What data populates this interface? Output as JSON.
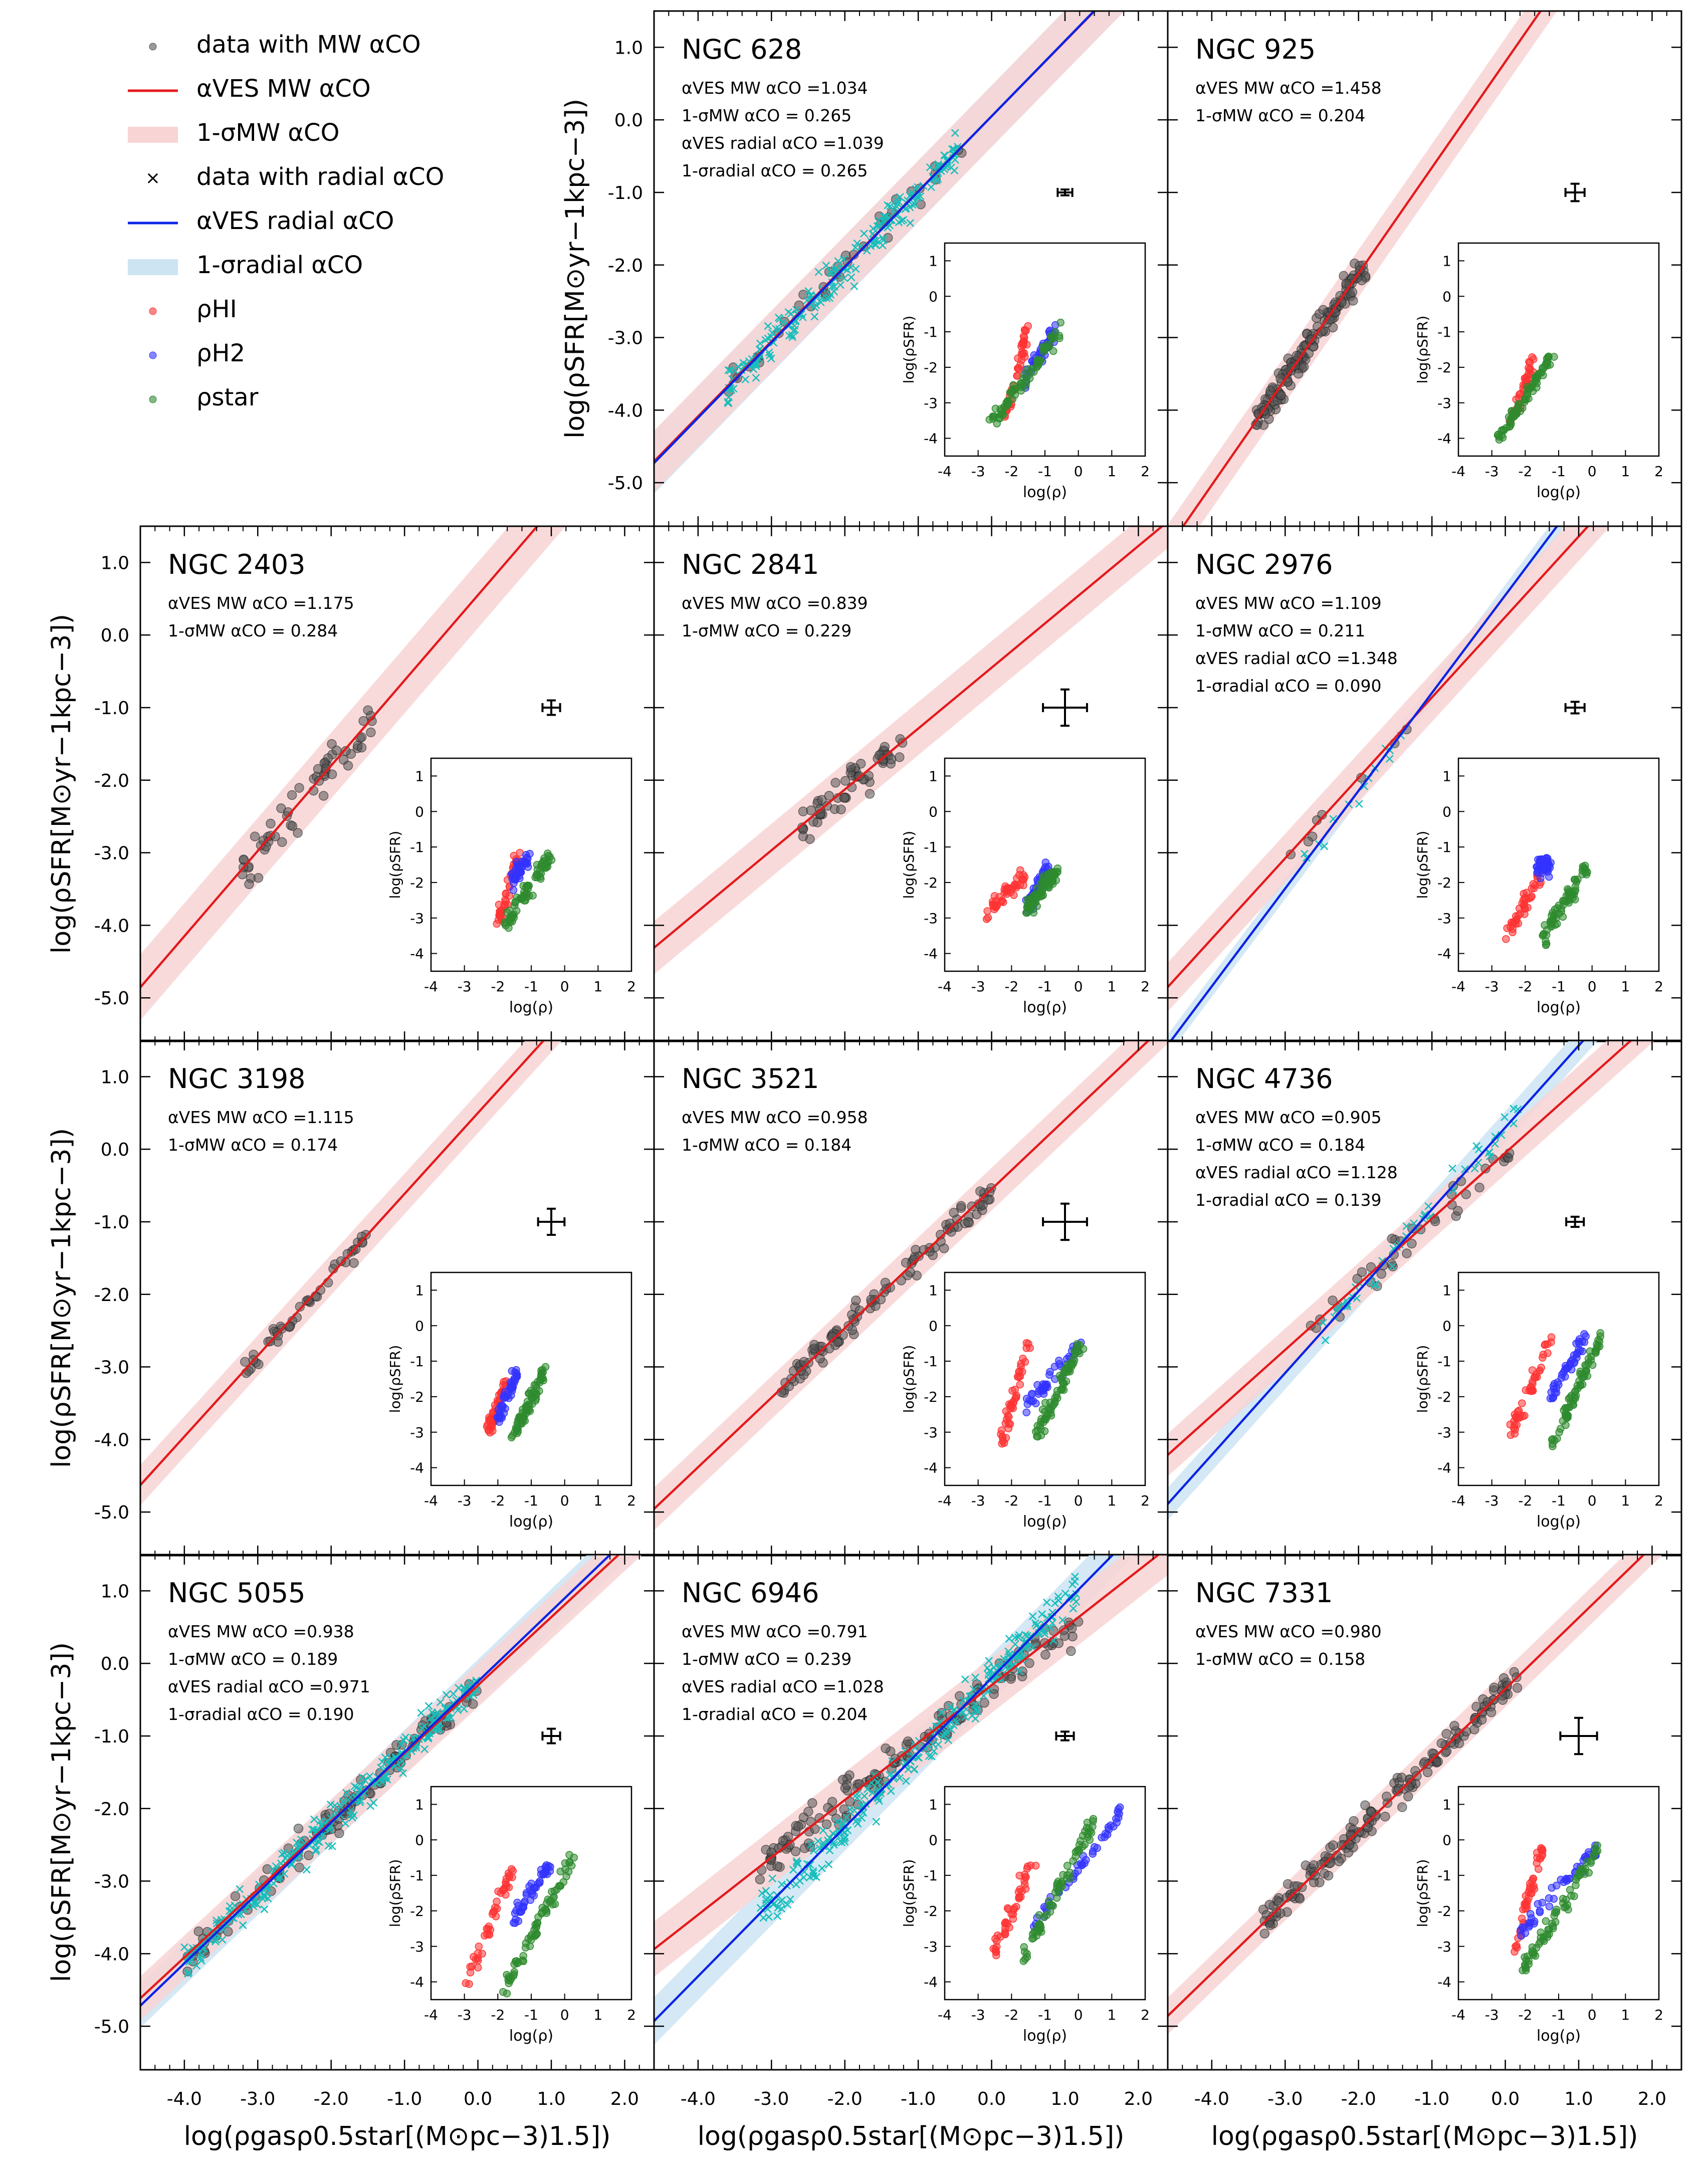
{
  "figure": {
    "xlabel": "log(ρgasρ0.5star[(M⊙pc−3)1.5])",
    "ylabel": "log(ρSFR[M⊙yr−1kpc−3])",
    "inset_xlabel": "log(ρ)",
    "inset_ylabel": "log(ρSFR)"
  },
  "legend": {
    "items": [
      {
        "kind": "dot",
        "color": "#555555",
        "label": "data with MW αCO"
      },
      {
        "kind": "line",
        "color": "#e41a1c",
        "label": "αVES MW αCO"
      },
      {
        "kind": "band",
        "color": "#f8d4d4",
        "label": "1-σMW αCO"
      },
      {
        "kind": "cross",
        "color": "#17bebb",
        "label": "data with radial αCO"
      },
      {
        "kind": "line",
        "color": "#0b24e6",
        "label": "αVES radial αCO"
      },
      {
        "kind": "band",
        "color": "#cde4f3",
        "label": "1-σradial αCO"
      },
      {
        "kind": "dot",
        "color": "#ff3333",
        "label": "ρHI"
      },
      {
        "kind": "dot",
        "color": "#3333ff",
        "label": "ρH2"
      },
      {
        "kind": "dot",
        "color": "#2e8b2e",
        "label": "ρstar"
      }
    ]
  },
  "colors": {
    "mw_points": "#555555",
    "mw_line": "#e41a1c",
    "mw_band": "#f8d4d4",
    "radial_points": "#17bebb",
    "radial_line": "#0b24e6",
    "radial_band": "#cde4f3",
    "hi": "#ff3333",
    "h2": "#3333ff",
    "star": "#2e8b2e"
  },
  "chart_data": [
    {
      "type": "scatter",
      "title": "NGC 628",
      "xlim": [
        -4.6,
        2.4
      ],
      "ylim": [
        -5.6,
        1.5
      ],
      "xticks": [
        "-4.0",
        "-3.0",
        "-2.0",
        "-1.0",
        "0.0",
        "1.0",
        "2.0"
      ],
      "yticks": [
        "-5.0",
        "-4.0",
        "-3.0",
        "-2.0",
        "-1.0",
        "0.0",
        "1.0"
      ],
      "stats": [
        "αVES MW αCO =1.034",
        "1-σMW αCO = 0.265",
        "αVES radial αCO =1.039",
        "1-σradial αCO = 0.265"
      ],
      "fit_mw": {
        "slope": 1.034,
        "intercept": 0.05,
        "sigma": 0.265
      },
      "fit_radial": {
        "slope": 1.039,
        "intercept": 0.05,
        "sigma": 0.265
      },
      "data_x_range": [
        -3.6,
        -0.4
      ],
      "n_mw": 40,
      "n_radial": 200,
      "scatter": 0.22,
      "error_bar": {
        "x": 1.0,
        "y": -1.0,
        "xerr": 0.1,
        "yerr": 0.04
      },
      "inset": {
        "xlim": [
          -4,
          2
        ],
        "ylim": [
          -4.5,
          1.5
        ],
        "HI": {
          "x_range": [
            -2.2,
            -1.5
          ],
          "y_range": [
            -3.5,
            -0.9
          ]
        },
        "H2": {
          "x_range": [
            -1.6,
            -0.7
          ],
          "y_range": [
            -2.4,
            -0.9
          ]
        },
        "star": {
          "x_range": [
            -2.6,
            -0.6
          ],
          "y_range": [
            -3.6,
            -1.0
          ]
        }
      }
    },
    {
      "type": "scatter",
      "title": "NGC 925",
      "xlim": [
        -4.6,
        2.4
      ],
      "ylim": [
        -5.6,
        1.5
      ],
      "xticks": [
        "-4.0",
        "-3.0",
        "-2.0",
        "-1.0",
        "0.0",
        "1.0",
        "2.0"
      ],
      "yticks": [
        "-5.0",
        "-4.0",
        "-3.0",
        "-2.0",
        "-1.0",
        "0.0",
        "1.0"
      ],
      "stats": [
        "αVES MW αCO =1.458",
        "1-σMW αCO = 0.204"
      ],
      "fit_mw": {
        "slope": 1.458,
        "intercept": 0.8,
        "sigma": 0.204
      },
      "data_x_range": [
        -3.4,
        -1.9
      ],
      "n_mw": 150,
      "scatter": 0.18,
      "error_bar": {
        "x": 0.95,
        "y": -1.0,
        "xerr": 0.13,
        "yerr": 0.12
      },
      "inset": {
        "xlim": [
          -4,
          2
        ],
        "ylim": [
          -4.5,
          1.5
        ],
        "HI": {
          "x_range": [
            -2.4,
            -1.7
          ],
          "y_range": [
            -3.5,
            -1.7
          ]
        },
        "star": {
          "x_range": [
            -2.8,
            -1.2
          ],
          "y_range": [
            -4.0,
            -1.7
          ]
        }
      }
    },
    {
      "type": "scatter",
      "title": "NGC 2403",
      "xlim": [
        -4.6,
        2.4
      ],
      "ylim": [
        -5.6,
        1.5
      ],
      "xticks": [
        "-4.0",
        "-3.0",
        "-2.0",
        "-1.0",
        "0.0",
        "1.0",
        "2.0"
      ],
      "yticks": [
        "-5.0",
        "-4.0",
        "-3.0",
        "-2.0",
        "-1.0",
        "0.0",
        "1.0"
      ],
      "stats": [
        "αVES MW αCO =1.175",
        "1-σMW αCO = 0.284"
      ],
      "fit_mw": {
        "slope": 1.175,
        "intercept": 0.55,
        "sigma": 0.284
      },
      "data_x_range": [
        -3.3,
        -1.4
      ],
      "n_mw": 60,
      "scatter": 0.25,
      "error_bar": {
        "x": 1.0,
        "y": -1.0,
        "xerr": 0.12,
        "yerr": 0.1
      },
      "inset": {
        "xlim": [
          -4,
          2
        ],
        "ylim": [
          -4.5,
          1.5
        ],
        "HI": {
          "x_range": [
            -2.0,
            -1.4
          ],
          "y_range": [
            -3.2,
            -1.2
          ]
        },
        "H2": {
          "x_range": [
            -1.6,
            -1.1
          ],
          "y_range": [
            -2.0,
            -1.3
          ]
        },
        "star": {
          "x_range": [
            -1.8,
            -0.4
          ],
          "y_range": [
            -3.2,
            -1.2
          ]
        }
      }
    },
    {
      "type": "scatter",
      "title": "NGC 2841",
      "xlim": [
        -4.6,
        2.4
      ],
      "ylim": [
        -5.6,
        1.5
      ],
      "xticks": [
        "-4.0",
        "-3.0",
        "-2.0",
        "-1.0",
        "0.0",
        "1.0",
        "2.0"
      ],
      "yticks": [
        "-5.0",
        "-4.0",
        "-3.0",
        "-2.0",
        "-1.0",
        "0.0",
        "1.0"
      ],
      "stats": [
        "αVES MW αCO =0.839",
        "1-σMW αCO = 0.229"
      ],
      "fit_mw": {
        "slope": 0.839,
        "intercept": -0.45,
        "sigma": 0.229
      },
      "data_x_range": [
        -2.6,
        -1.2
      ],
      "n_mw": 60,
      "scatter": 0.22,
      "error_bar": {
        "x": 1.0,
        "y": -1.0,
        "xerr": 0.3,
        "yerr": 0.25
      },
      "inset": {
        "xlim": [
          -4,
          2
        ],
        "ylim": [
          -4.5,
          1.5
        ],
        "HI": {
          "x_range": [
            -2.7,
            -1.6
          ],
          "y_range": [
            -2.8,
            -1.8
          ]
        },
        "H2": {
          "x_range": [
            -1.5,
            -0.9
          ],
          "y_range": [
            -2.6,
            -1.6
          ]
        },
        "star": {
          "x_range": [
            -1.6,
            -0.6
          ],
          "y_range": [
            -2.8,
            -1.6
          ]
        }
      }
    },
    {
      "type": "scatter",
      "title": "NGC 2976",
      "xlim": [
        -4.6,
        2.4
      ],
      "ylim": [
        -5.6,
        1.5
      ],
      "xticks": [
        "-4.0",
        "-3.0",
        "-2.0",
        "-1.0",
        "0.0",
        "1.0",
        "2.0"
      ],
      "yticks": [
        "-5.0",
        "-4.0",
        "-3.0",
        "-2.0",
        "-1.0",
        "0.0",
        "1.0"
      ],
      "stats": [
        "αVES MW αCO =1.109",
        "1-σMW αCO = 0.211",
        "αVES radial αCO =1.348",
        "1-σradial αCO = 0.090"
      ],
      "fit_mw": {
        "slope": 1.109,
        "intercept": 0.25,
        "sigma": 0.211
      },
      "fit_radial": {
        "slope": 1.348,
        "intercept": 0.55,
        "sigma": 0.09
      },
      "data_x_range": [
        -3.0,
        -1.3
      ],
      "n_mw": 8,
      "n_radial": 14,
      "scatter": 0.15,
      "error_bar": {
        "x": 0.95,
        "y": -1.0,
        "xerr": 0.13,
        "yerr": 0.08
      },
      "inset": {
        "xlim": [
          -4,
          2
        ],
        "ylim": [
          -4.5,
          1.5
        ],
        "HI": {
          "x_range": [
            -2.6,
            -1.4
          ],
          "y_range": [
            -3.6,
            -1.5
          ]
        },
        "H2": {
          "x_range": [
            -1.6,
            -1.3
          ],
          "y_range": [
            -1.6,
            -1.5
          ]
        },
        "star": {
          "x_range": [
            -1.5,
            -0.2
          ],
          "y_range": [
            -3.6,
            -1.6
          ]
        }
      }
    },
    {
      "type": "scatter",
      "title": "NGC 3198",
      "xlim": [
        -4.6,
        2.4
      ],
      "ylim": [
        -5.6,
        1.5
      ],
      "xticks": [
        "-4.0",
        "-3.0",
        "-2.0",
        "-1.0",
        "0.0",
        "1.0",
        "2.0"
      ],
      "yticks": [
        "-5.0",
        "-4.0",
        "-3.0",
        "-2.0",
        "-1.0",
        "0.0",
        "1.0"
      ],
      "stats": [
        "αVES MW αCO =1.115",
        "1-σMW αCO = 0.174"
      ],
      "fit_mw": {
        "slope": 1.115,
        "intercept": 0.5,
        "sigma": 0.174
      },
      "data_x_range": [
        -3.2,
        -1.5
      ],
      "n_mw": 45,
      "scatter": 0.12,
      "error_bar": {
        "x": 1.0,
        "y": -1.0,
        "xerr": 0.18,
        "yerr": 0.18
      },
      "inset": {
        "xlim": [
          -4,
          2
        ],
        "ylim": [
          -4.5,
          1.5
        ],
        "HI": {
          "x_range": [
            -2.3,
            -1.8
          ],
          "y_range": [
            -3.0,
            -1.5
          ]
        },
        "H2": {
          "x_range": [
            -2.0,
            -1.4
          ],
          "y_range": [
            -2.6,
            -1.3
          ]
        },
        "star": {
          "x_range": [
            -1.6,
            -0.6
          ],
          "y_range": [
            -3.2,
            -1.3
          ]
        }
      }
    },
    {
      "type": "scatter",
      "title": "NGC 3521",
      "xlim": [
        -4.6,
        2.4
      ],
      "ylim": [
        -5.6,
        1.5
      ],
      "xticks": [
        "-4.0",
        "-3.0",
        "-2.0",
        "-1.0",
        "0.0",
        "1.0",
        "2.0"
      ],
      "yticks": [
        "-5.0",
        "-4.0",
        "-3.0",
        "-2.0",
        "-1.0",
        "0.0",
        "1.0"
      ],
      "stats": [
        "αVES MW αCO =0.958",
        "1-σMW αCO = 0.184"
      ],
      "fit_mw": {
        "slope": 0.958,
        "intercept": -0.55,
        "sigma": 0.184
      },
      "data_x_range": [
        -2.9,
        0.0
      ],
      "n_mw": 110,
      "scatter": 0.18,
      "error_bar": {
        "x": 1.0,
        "y": -1.0,
        "xerr": 0.3,
        "yerr": 0.25
      },
      "inset": {
        "xlim": [
          -4,
          2
        ],
        "ylim": [
          -4.5,
          1.5
        ],
        "HI": {
          "x_range": [
            -2.3,
            -1.5
          ],
          "y_range": [
            -3.3,
            -0.5
          ]
        },
        "H2": {
          "x_range": [
            -1.6,
            0.1
          ],
          "y_range": [
            -2.3,
            -0.5
          ]
        },
        "star": {
          "x_range": [
            -1.3,
            0.1
          ],
          "y_range": [
            -3.2,
            -0.5
          ]
        }
      }
    },
    {
      "type": "scatter",
      "title": "NGC 4736",
      "xlim": [
        -4.6,
        2.4
      ],
      "ylim": [
        -5.6,
        1.5
      ],
      "xticks": [
        "-4.0",
        "-3.0",
        "-2.0",
        "-1.0",
        "0.0",
        "1.0",
        "2.0"
      ],
      "yticks": [
        "-5.0",
        "-4.0",
        "-3.0",
        "-2.0",
        "-1.0",
        "0.0",
        "1.0"
      ],
      "stats": [
        "αVES MW αCO =0.905",
        "1-σMW αCO = 0.184",
        "αVES radial αCO =1.128",
        "1-σradial αCO = 0.139"
      ],
      "fit_mw": {
        "slope": 0.905,
        "intercept": -0.05,
        "sigma": 0.184
      },
      "fit_radial": {
        "slope": 1.128,
        "intercept": 0.3,
        "sigma": 0.139
      },
      "data_x_range": [
        -2.7,
        0.2
      ],
      "n_mw": 40,
      "n_radial": 50,
      "scatter": 0.2,
      "error_bar": {
        "x": 0.95,
        "y": -1.0,
        "xerr": 0.12,
        "yerr": 0.07
      },
      "inset": {
        "xlim": [
          -4,
          2
        ],
        "ylim": [
          -4.5,
          1.5
        ],
        "HI": {
          "x_range": [
            -2.4,
            -1.2
          ],
          "y_range": [
            -3.0,
            -0.3
          ]
        },
        "H2": {
          "x_range": [
            -1.2,
            -0.2
          ],
          "y_range": [
            -2.0,
            -0.3
          ]
        },
        "star": {
          "x_range": [
            -1.2,
            0.3
          ],
          "y_range": [
            -3.4,
            -0.2
          ]
        }
      }
    },
    {
      "type": "scatter",
      "title": "NGC 5055",
      "xlim": [
        -4.6,
        2.4
      ],
      "ylim": [
        -5.6,
        1.5
      ],
      "xticks": [
        "-4.0",
        "-3.0",
        "-2.0",
        "-1.0",
        "0.0",
        "1.0",
        "2.0"
      ],
      "yticks": [
        "-5.0",
        "-4.0",
        "-3.0",
        "-2.0",
        "-1.0",
        "0.0",
        "1.0"
      ],
      "stats": [
        "αVES MW αCO =0.938",
        "1-σMW αCO = 0.189",
        "αVES radial αCO =0.971",
        "1-σradial αCO = 0.190"
      ],
      "fit_mw": {
        "slope": 0.938,
        "intercept": -0.3,
        "sigma": 0.189
      },
      "fit_radial": {
        "slope": 0.971,
        "intercept": -0.25,
        "sigma": 0.19
      },
      "data_x_range": [
        -4.0,
        0.0
      ],
      "n_mw": 120,
      "n_radial": 260,
      "scatter": 0.2,
      "error_bar": {
        "x": 1.0,
        "y": -1.0,
        "xerr": 0.12,
        "yerr": 0.1
      },
      "inset": {
        "xlim": [
          -4,
          2
        ],
        "ylim": [
          -4.5,
          1.5
        ],
        "HI": {
          "x_range": [
            -3.0,
            -1.5
          ],
          "y_range": [
            -4.2,
            -0.6
          ]
        },
        "H2": {
          "x_range": [
            -1.6,
            -0.4
          ],
          "y_range": [
            -2.3,
            -0.6
          ]
        },
        "star": {
          "x_range": [
            -1.8,
            0.2
          ],
          "y_range": [
            -4.2,
            -0.6
          ]
        }
      }
    },
    {
      "type": "scatter",
      "title": "NGC 6946",
      "xlim": [
        -4.6,
        2.4
      ],
      "ylim": [
        -5.6,
        1.5
      ],
      "xticks": [
        "-4.0",
        "-3.0",
        "-2.0",
        "-1.0",
        "0.0",
        "1.0",
        "2.0"
      ],
      "yticks": [
        "-5.0",
        "-4.0",
        "-3.0",
        "-2.0",
        "-1.0",
        "0.0",
        "1.0"
      ],
      "stats": [
        "αVES MW αCO =0.791",
        "1-σMW αCO = 0.239",
        "αVES radial αCO =1.028",
        "1-σradial αCO = 0.204"
      ],
      "fit_mw": {
        "slope": 0.791,
        "intercept": -0.3,
        "sigma": 0.239
      },
      "fit_radial": {
        "slope": 1.028,
        "intercept": -0.2,
        "sigma": 0.204
      },
      "data_x_range": [
        -3.2,
        1.2
      ],
      "n_mw": 150,
      "n_radial": 260,
      "scatter": 0.25,
      "error_bar": {
        "x": 1.0,
        "y": -1.0,
        "xerr": 0.12,
        "yerr": 0.06
      },
      "inset": {
        "xlim": [
          -4,
          2
        ],
        "ylim": [
          -4.5,
          1.5
        ],
        "HI": {
          "x_range": [
            -2.5,
            -1.3
          ],
          "y_range": [
            -3.1,
            -0.5
          ]
        },
        "H2": {
          "x_range": [
            -1.4,
            1.3
          ],
          "y_range": [
            -2.5,
            0.8
          ]
        },
        "star": {
          "x_range": [
            -1.6,
            0.5
          ],
          "y_range": [
            -3.2,
            0.6
          ]
        }
      }
    },
    {
      "type": "scatter",
      "title": "NGC 7331",
      "xlim": [
        -4.6,
        2.4
      ],
      "ylim": [
        -5.6,
        1.5
      ],
      "xticks": [
        "-4.0",
        "-3.0",
        "-2.0",
        "-1.0",
        "0.0",
        "1.0",
        "2.0"
      ],
      "yticks": [
        "-5.0",
        "-4.0",
        "-3.0",
        "-2.0",
        "-1.0",
        "0.0",
        "1.0"
      ],
      "stats": [
        "αVES MW αCO =0.980",
        "1-σMW αCO = 0.158"
      ],
      "fit_mw": {
        "slope": 0.98,
        "intercept": -0.35,
        "sigma": 0.158
      },
      "data_x_range": [
        -3.3,
        0.2
      ],
      "n_mw": 170,
      "scatter": 0.18,
      "error_bar": {
        "x": 1.0,
        "y": -1.0,
        "xerr": 0.25,
        "yerr": 0.25
      },
      "inset": {
        "xlim": [
          -4,
          2
        ],
        "ylim": [
          -4.5,
          1.5
        ],
        "HI": {
          "x_range": [
            -2.3,
            -1.5
          ],
          "y_range": [
            -3.2,
            -0.2
          ]
        },
        "H2": {
          "x_range": [
            -2.2,
            0.1
          ],
          "y_range": [
            -2.7,
            -0.2
          ]
        },
        "star": {
          "x_range": [
            -2.0,
            0.2
          ],
          "y_range": [
            -3.6,
            -0.2
          ]
        }
      }
    }
  ]
}
